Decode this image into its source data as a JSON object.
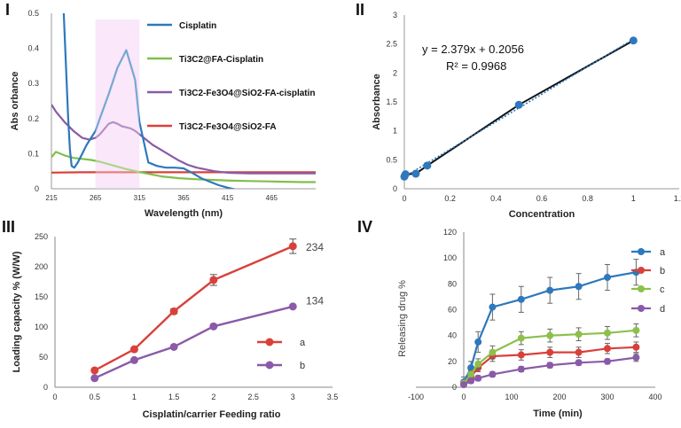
{
  "chart_data": [
    {
      "panel": "I",
      "type": "line",
      "xlabel": "Wavelength (nm)",
      "ylabel": "Abs orbance",
      "xticks": [
        "215",
        "265",
        "315",
        "365",
        "415",
        "465"
      ],
      "yticks": [
        "0",
        "0.1",
        "0.2",
        "0.3",
        "0.4",
        "0.5"
      ],
      "xlim": [
        215,
        515
      ],
      "ylim": [
        0,
        0.5
      ],
      "highlight_band": [
        265,
        315
      ],
      "series": [
        {
          "name": "Cisplatin",
          "color": "#2e78bd",
          "x": [
            229,
            230,
            232,
            234,
            236,
            238,
            241,
            245,
            250,
            255,
            260,
            265,
            270,
            280,
            290,
            300,
            310,
            315,
            325,
            335,
            345,
            355,
            365,
            375,
            385,
            395,
            405,
            415,
            420,
            425,
            430
          ],
          "y": [
            0.5,
            0.44,
            0.32,
            0.2,
            0.11,
            0.065,
            0.06,
            0.075,
            0.1,
            0.125,
            0.145,
            0.165,
            0.2,
            0.27,
            0.345,
            0.395,
            0.31,
            0.19,
            0.075,
            0.065,
            0.06,
            0.06,
            0.058,
            0.045,
            0.03,
            0.02,
            0.01,
            0.003,
            0,
            -0.003,
            -0.005
          ]
        },
        {
          "name": "Ti3C2@FA-Cisplatin",
          "color": "#7fbf4d",
          "x": [
            215,
            220,
            230,
            240,
            250,
            260,
            270,
            280,
            290,
            300,
            320,
            340,
            360,
            380,
            400,
            420,
            440,
            460,
            480,
            500,
            515
          ],
          "y": [
            0.09,
            0.105,
            0.095,
            0.088,
            0.085,
            0.082,
            0.077,
            0.07,
            0.063,
            0.056,
            0.045,
            0.035,
            0.03,
            0.027,
            0.025,
            0.023,
            0.022,
            0.021,
            0.02,
            0.019,
            0.019
          ]
        },
        {
          "name": "Ti3C2-Fe3O4@SiO2-FA-cisplatin",
          "color": "#8a5aa8",
          "x": [
            215,
            220,
            230,
            240,
            250,
            258,
            265,
            270,
            275,
            280,
            285,
            290,
            295,
            300,
            305,
            310,
            320,
            330,
            340,
            350,
            360,
            370,
            380,
            390,
            400,
            410,
            420,
            440,
            460,
            480,
            500,
            515
          ],
          "y": [
            0.24,
            0.22,
            0.19,
            0.165,
            0.145,
            0.14,
            0.145,
            0.155,
            0.17,
            0.185,
            0.19,
            0.185,
            0.178,
            0.175,
            0.172,
            0.165,
            0.145,
            0.125,
            0.11,
            0.095,
            0.08,
            0.068,
            0.06,
            0.055,
            0.05,
            0.047,
            0.045,
            0.044,
            0.044,
            0.044,
            0.044,
            0.044
          ]
        },
        {
          "name": "Ti3C2-Fe3O4@SiO2-FA",
          "color": "#d9403a",
          "x": [
            215,
            250,
            300,
            350,
            400,
            450,
            515
          ],
          "y": [
            0.046,
            0.047,
            0.047,
            0.047,
            0.047,
            0.047,
            0.047
          ]
        }
      ]
    },
    {
      "panel": "II",
      "type": "scatter",
      "xlabel": "Concentration",
      "ylabel": "Absorbance",
      "xticks": [
        "0",
        "0.2",
        "0.4",
        "0.6",
        "0.8",
        "1",
        "1.2"
      ],
      "yticks": [
        "0",
        "0.5",
        "1",
        "1.5",
        "2",
        "2.5",
        "3"
      ],
      "xlim": [
        0,
        1.2
      ],
      "ylim": [
        0,
        3
      ],
      "x": [
        0,
        0.005,
        0.05,
        0.1,
        0.5,
        1
      ],
      "y": [
        0.21,
        0.25,
        0.26,
        0.4,
        1.45,
        2.56
      ],
      "trendline": {
        "slope": 2.379,
        "intercept": 0.2056
      },
      "equation": "y = 2.379x + 0.2056",
      "r2": "R² = 0.9968",
      "marker_color": "#2e78bd"
    },
    {
      "panel": "III",
      "type": "line",
      "xlabel": "Cisplatin/carrier Feeding ratio",
      "ylabel": "Loading capacity % (W/W)",
      "xticks": [
        "0",
        "0.5",
        "1",
        "1.5",
        "2",
        "2.5",
        "3",
        "3.5"
      ],
      "yticks": [
        "0",
        "50",
        "100",
        "150",
        "200",
        "250"
      ],
      "xlim": [
        0,
        3.5
      ],
      "ylim": [
        0,
        250
      ],
      "series": [
        {
          "name": "a",
          "color": "#d9403a",
          "x": [
            0.5,
            1,
            1.5,
            2,
            3
          ],
          "y": [
            28,
            63,
            126,
            178,
            234
          ],
          "err": [
            0,
            0,
            4,
            9,
            12
          ]
        },
        {
          "name": "b",
          "color": "#8a5aa8",
          "x": [
            0.5,
            1,
            1.5,
            2,
            3
          ],
          "y": [
            15,
            45,
            67,
            101,
            134
          ],
          "err": [
            0,
            0,
            0,
            0,
            0
          ]
        }
      ],
      "data_labels": [
        "234",
        "134"
      ]
    },
    {
      "panel": "IV",
      "type": "line",
      "xlabel": "Time (min)",
      "ylabel": "Releasing  drug %",
      "xticks": [
        "-100",
        "0",
        "100",
        "200",
        "300",
        "400"
      ],
      "yticks": [
        "0",
        "20",
        "40",
        "60",
        "80",
        "100",
        "120"
      ],
      "xlim": [
        -100,
        400
      ],
      "ylim": [
        0,
        120
      ],
      "series": [
        {
          "name": "a",
          "color": "#2e78bd",
          "x": [
            0,
            15,
            30,
            60,
            120,
            180,
            240,
            300,
            360
          ],
          "y": [
            4,
            15,
            35,
            62,
            68,
            75,
            78,
            85,
            89
          ],
          "err": [
            4,
            5,
            8,
            10,
            10,
            10,
            10,
            10,
            10
          ]
        },
        {
          "name": "b",
          "color": "#d9403a",
          "x": [
            0,
            15,
            30,
            60,
            120,
            180,
            240,
            300,
            360
          ],
          "y": [
            3,
            8,
            15,
            24,
            25,
            27,
            27,
            30,
            31
          ],
          "err": [
            2,
            3,
            3,
            4,
            4,
            4,
            4,
            4,
            4
          ]
        },
        {
          "name": "c",
          "color": "#8cc04a",
          "x": [
            0,
            15,
            30,
            60,
            120,
            180,
            240,
            300,
            360
          ],
          "y": [
            3,
            10,
            18,
            27,
            38,
            40,
            41,
            42,
            44
          ],
          "err": [
            2,
            3,
            4,
            5,
            5,
            5,
            5,
            5,
            5
          ]
        },
        {
          "name": "d",
          "color": "#8a5aa8",
          "x": [
            0,
            15,
            30,
            60,
            120,
            180,
            240,
            300,
            360
          ],
          "y": [
            2,
            5,
            7,
            10,
            14,
            17,
            19,
            20,
            23
          ],
          "err": [
            1,
            2,
            2,
            2,
            2,
            2,
            2,
            2,
            3
          ]
        }
      ]
    }
  ],
  "band_color": "#f6cff3",
  "grid_color": "#d9d9d9"
}
